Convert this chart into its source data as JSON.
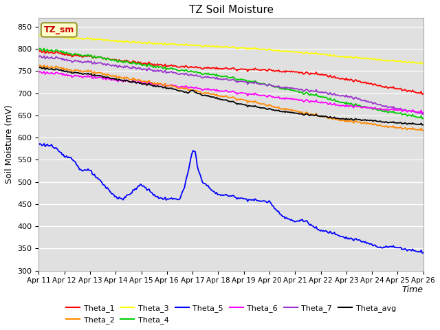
{
  "title": "TZ Soil Moisture",
  "xlabel": "Time",
  "ylabel": "Soil Moisture (mV)",
  "ylim": [
    300,
    870
  ],
  "yticks": [
    300,
    350,
    400,
    450,
    500,
    550,
    600,
    650,
    700,
    750,
    800,
    850
  ],
  "date_labels": [
    "Apr 11",
    "Apr 12",
    "Apr 13",
    "Apr 14",
    "Apr 15",
    "Apr 16",
    "Apr 17",
    "Apr 18",
    "Apr 19",
    "Apr 20",
    "Apr 21",
    "Apr 22",
    "Apr 23",
    "Apr 24",
    "Apr 25",
    "Apr 26"
  ],
  "n_days": 15,
  "annotation_text": "TZ_sm",
  "annotation_color": "#cc0000",
  "annotation_bg": "#ffffcc",
  "annotation_border": "#999933",
  "plot_bg": "#e0e0e0",
  "grid_color": "#ffffff",
  "series_colors": {
    "Theta_1": "#ff0000",
    "Theta_2": "#ff8800",
    "Theta_3": "#ffff00",
    "Theta_4": "#00cc00",
    "Theta_5": "#0000ff",
    "Theta_6": "#ff00ff",
    "Theta_7": "#9933cc",
    "Theta_avg": "#000000"
  },
  "legend_order": [
    "Theta_1",
    "Theta_2",
    "Theta_3",
    "Theta_4",
    "Theta_5",
    "Theta_6",
    "Theta_7",
    "Theta_avg"
  ]
}
